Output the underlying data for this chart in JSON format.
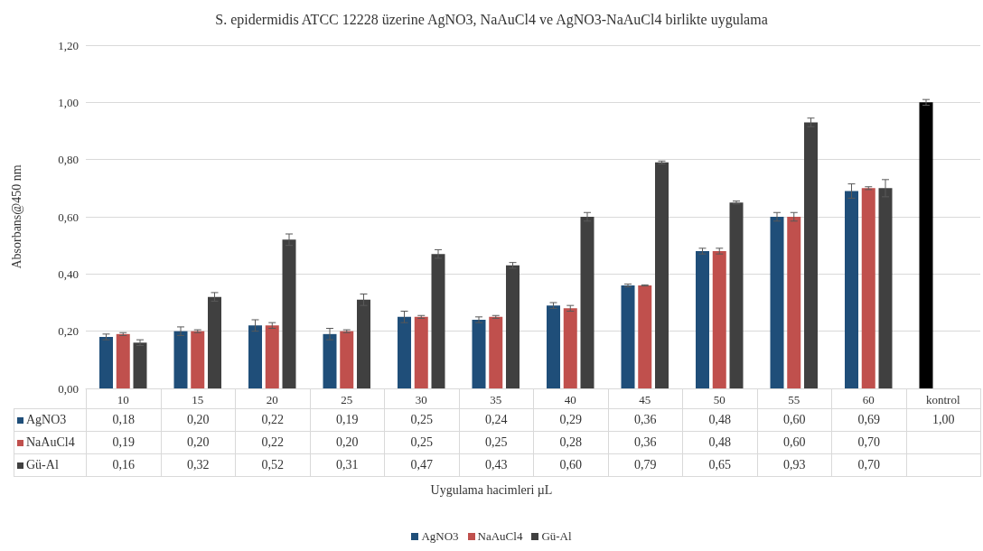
{
  "chart_data": {
    "type": "bar",
    "title": "S. epidermidis ATCC 12228 üzerine AgNO3, NaAuCl4 ve AgNO3-NaAuCl4 birlikte uygulama",
    "ylabel": "Absorbans@450 nm",
    "annotations": [
      "Uygulama hacimleri µL"
    ],
    "categories": [
      "10",
      "15",
      "20",
      "25",
      "30",
      "35",
      "40",
      "45",
      "50",
      "55",
      "60",
      "kontrol"
    ],
    "series": [
      {
        "name": "AgNO3",
        "color": "#1f4e79",
        "colors": [
          "#1f4e79",
          "#1f4e79",
          "#1f4e79",
          "#1f4e79",
          "#1f4e79",
          "#1f4e79",
          "#1f4e79",
          "#1f4e79",
          "#1f4e79",
          "#1f4e79",
          "#1f4e79",
          "#000000"
        ],
        "values": [
          0.18,
          0.2,
          0.22,
          0.19,
          0.25,
          0.24,
          0.29,
          0.36,
          0.48,
          0.6,
          0.69,
          1.0
        ],
        "errors": [
          0.01,
          0.015,
          0.02,
          0.02,
          0.02,
          0.01,
          0.01,
          0.005,
          0.01,
          0.015,
          0.025,
          0.01
        ],
        "value_labels": [
          "0,18",
          "0,20",
          "0,22",
          "0,19",
          "0,25",
          "0,24",
          "0,29",
          "0,36",
          "0,48",
          "0,60",
          "0,69",
          "1,00"
        ]
      },
      {
        "name": "NaAuCl4",
        "color": "#c0504d",
        "values": [
          0.19,
          0.2,
          0.22,
          0.2,
          0.25,
          0.25,
          0.28,
          0.36,
          0.48,
          0.6,
          0.7,
          null
        ],
        "errors": [
          0.005,
          0.005,
          0.01,
          0.005,
          0.005,
          0.005,
          0.01,
          0.002,
          0.01,
          0.015,
          0.005,
          null
        ],
        "value_labels": [
          "0,19",
          "0,20",
          "0,22",
          "0,20",
          "0,25",
          "0,25",
          "0,28",
          "0,36",
          "0,48",
          "0,60",
          "0,70",
          null
        ]
      },
      {
        "name": "Gü-Al",
        "color": "#404040",
        "values": [
          0.16,
          0.32,
          0.52,
          0.31,
          0.47,
          0.43,
          0.6,
          0.79,
          0.65,
          0.93,
          0.7,
          null
        ],
        "errors": [
          0.01,
          0.015,
          0.02,
          0.02,
          0.015,
          0.01,
          0.015,
          0.005,
          0.005,
          0.015,
          0.03,
          null
        ],
        "value_labels": [
          "0,16",
          "0,32",
          "0,52",
          "0,31",
          "0,47",
          "0,43",
          "0,60",
          "0,79",
          "0,65",
          "0,93",
          "0,70",
          null
        ]
      }
    ],
    "ylim": [
      0,
      1.2
    ],
    "yticks": [
      {
        "value": 0,
        "label": "0,00"
      },
      {
        "value": 0.2,
        "label": "0,20"
      },
      {
        "value": 0.4,
        "label": "0,40"
      },
      {
        "value": 0.6,
        "label": "0,60"
      },
      {
        "value": 0.8,
        "label": "0,80"
      },
      {
        "value": 1.0,
        "label": "1,00"
      },
      {
        "value": 1.2,
        "label": "1,20"
      }
    ],
    "grid": "y",
    "legend": "bottom"
  }
}
